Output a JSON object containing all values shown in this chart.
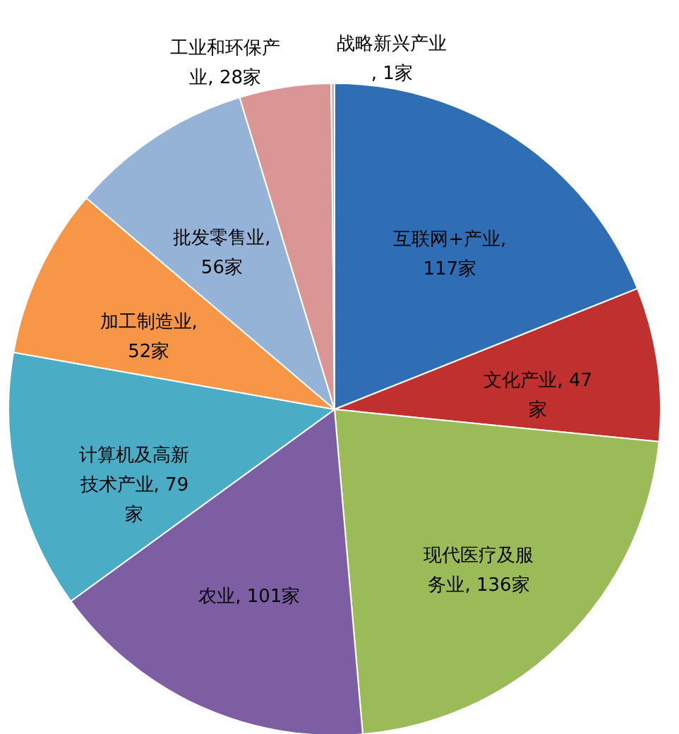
{
  "chart_data": {
    "type": "pie",
    "categories": [
      "互联网+产业, 117家",
      "文化产业, 47家",
      "现代医疗及服务业, 136家",
      "农业, 101家",
      "计算机及高新技术产业, 79家",
      "加工制造业, 52家",
      "批发零售业, 56家",
      "工业和环保产业, 28家",
      "战略新兴产业, 1家"
    ],
    "values": [
      117,
      47,
      136,
      101,
      79,
      52,
      56,
      28,
      1
    ],
    "colors": [
      "#2f6db5",
      "#c0302e",
      "#9bbb59",
      "#7e5ea3",
      "#4bacc6",
      "#f79646",
      "#95b3d7",
      "#d99694",
      "#b7b7b7"
    ]
  }
}
